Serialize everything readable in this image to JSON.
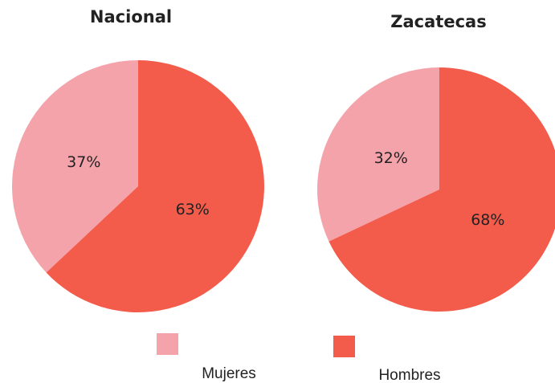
{
  "chart_data": [
    {
      "type": "pie",
      "title": "Nacional",
      "categories": [
        "Mujeres",
        "Hombres"
      ],
      "values": [
        37,
        63
      ],
      "value_labels": [
        "37%",
        "63%"
      ],
      "colors": [
        "#f5a3ab",
        "#f35b4b"
      ]
    },
    {
      "type": "pie",
      "title": "Zacatecas",
      "categories": [
        "Mujeres",
        "Hombres"
      ],
      "values": [
        32,
        68
      ],
      "value_labels": [
        "32%",
        "68%"
      ],
      "colors": [
        "#f5a3ab",
        "#f35b4b"
      ]
    }
  ]
}
